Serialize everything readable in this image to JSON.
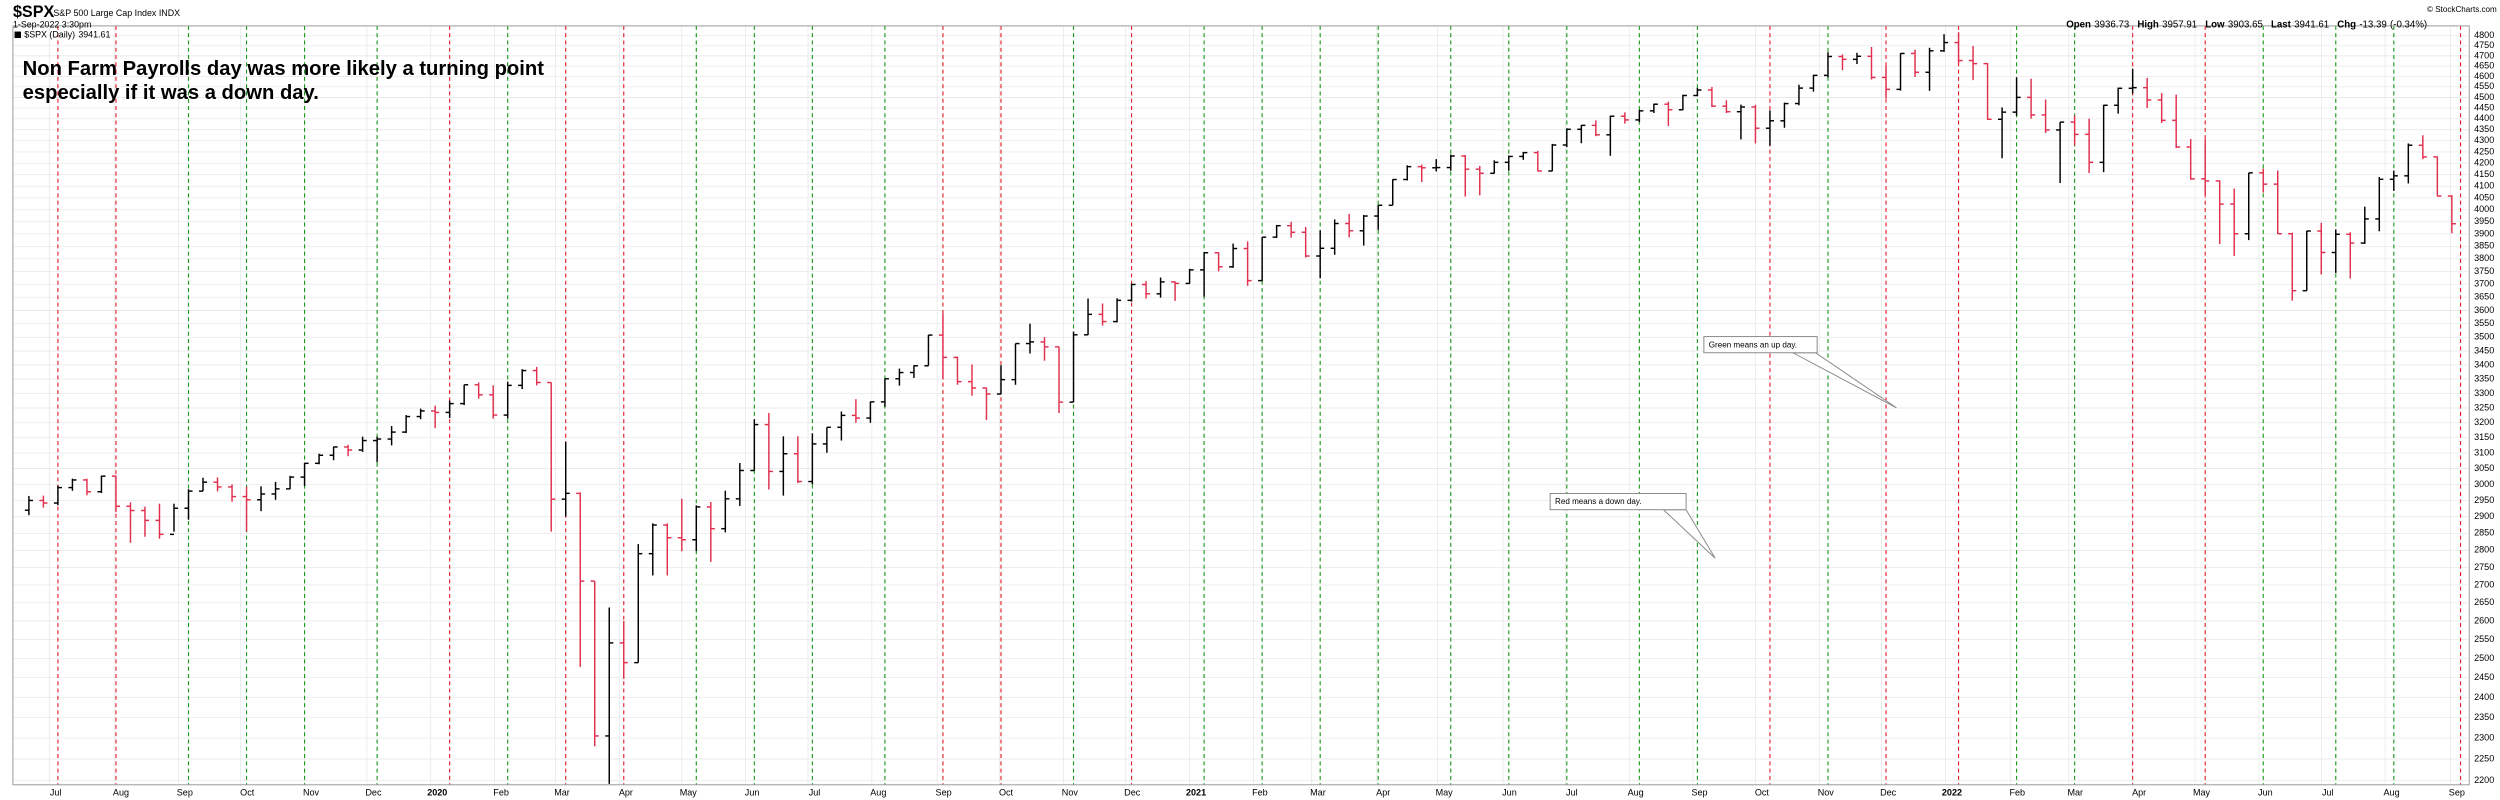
{
  "header": {
    "symbol": "$SPX",
    "name": "S&P 500 Large Cap Index INDX",
    "timestamp": "1-Sep-2022 3:30pm",
    "quote": [
      {
        "label": "Open",
        "value": 3936.73
      },
      {
        "label": "High",
        "value": 3957.91
      },
      {
        "label": "Low",
        "value": 3903.65
      },
      {
        "label": "Last",
        "value": 3941.61
      },
      {
        "label": "Chg",
        "value": -13.39
      }
    ],
    "chg_pct": "(-0.34%)",
    "credit": "© StockCharts.com"
  },
  "chart_data": {
    "type": "ohlc",
    "legend": "$SPX (Daily)",
    "last": 3941.61,
    "annotation": [
      "Non Farm Payrolls day was more likely a turning point",
      "especially if it was a down day."
    ],
    "annotation_color": "#1414d2",
    "callouts": [
      {
        "text": "Green means an up day.",
        "color": "#1a8a1a"
      },
      {
        "text": "Red means a down day.",
        "color": "#e0202a"
      }
    ],
    "up_color": "#000000",
    "down_color": "#e0304e",
    "log_y": true,
    "grid": true,
    "ylim": [
      2190,
      4850
    ],
    "yticks": [
      2200,
      2250,
      2300,
      2350,
      2400,
      2450,
      2500,
      2550,
      2600,
      2650,
      2700,
      2750,
      2800,
      2850,
      2900,
      2950,
      3000,
      3050,
      3100,
      3150,
      3200,
      3250,
      3300,
      3350,
      3400,
      3450,
      3500,
      3550,
      3600,
      3650,
      3700,
      3750,
      3800,
      3850,
      3900,
      3950,
      4000,
      4050,
      4100,
      4150,
      4200,
      4250,
      4300,
      4350,
      4400,
      4450,
      4500,
      4550,
      4600,
      4650,
      4700,
      4750,
      4800
    ],
    "xlim": [
      -1.1,
      168.2
    ],
    "xticks": [
      {
        "value": 1.4,
        "label": "Jul"
      },
      {
        "value": 5.9,
        "label": "Aug"
      },
      {
        "value": 10.3,
        "label": "Sep"
      },
      {
        "value": 14.6,
        "label": "Oct"
      },
      {
        "value": 19,
        "label": "Nov"
      },
      {
        "value": 23.3,
        "label": "Dec"
      },
      {
        "value": 27.7,
        "label": "2020"
      },
      {
        "value": 32.1,
        "label": "Feb"
      },
      {
        "value": 36.3,
        "label": "Mar"
      },
      {
        "value": 40.7,
        "label": "Apr"
      },
      {
        "value": 45,
        "label": "May"
      },
      {
        "value": 49.4,
        "label": "Jun"
      },
      {
        "value": 53.7,
        "label": "Jul"
      },
      {
        "value": 58.1,
        "label": "Aug"
      },
      {
        "value": 62.6,
        "label": "Sep"
      },
      {
        "value": 66.9,
        "label": "Oct"
      },
      {
        "value": 71.3,
        "label": "Nov"
      },
      {
        "value": 75.6,
        "label": "Dec"
      },
      {
        "value": 80,
        "label": "2021"
      },
      {
        "value": 84.4,
        "label": "Feb"
      },
      {
        "value": 88.4,
        "label": "Mar"
      },
      {
        "value": 92.9,
        "label": "Apr"
      },
      {
        "value": 97.1,
        "label": "May"
      },
      {
        "value": 101.6,
        "label": "Jun"
      },
      {
        "value": 105.9,
        "label": "Jul"
      },
      {
        "value": 110.3,
        "label": "Aug"
      },
      {
        "value": 114.7,
        "label": "Sep"
      },
      {
        "value": 119,
        "label": "Oct"
      },
      {
        "value": 123.4,
        "label": "Nov"
      },
      {
        "value": 127.7,
        "label": "Dec"
      },
      {
        "value": 132.1,
        "label": "2022"
      },
      {
        "value": 136.6,
        "label": "Feb"
      },
      {
        "value": 140.6,
        "label": "Mar"
      },
      {
        "value": 145,
        "label": "Apr"
      },
      {
        "value": 149.3,
        "label": "May"
      },
      {
        "value": 153.7,
        "label": "Jun"
      },
      {
        "value": 158,
        "label": "Jul"
      },
      {
        "value": 162.4,
        "label": "Aug"
      },
      {
        "value": 166.9,
        "label": "Sep"
      }
    ],
    "markers": {
      "positions": [
        2,
        6,
        11,
        15,
        19,
        24,
        29,
        33,
        37,
        41,
        46,
        50,
        54,
        59,
        63,
        67,
        72,
        76,
        81,
        85,
        89,
        93,
        98,
        102,
        106,
        111,
        115,
        120,
        124,
        128,
        133,
        137,
        141,
        145,
        150,
        154,
        159,
        163,
        167.6
      ],
      "colors": [
        "#e0202a",
        "#e0202a",
        "#1a9a1a",
        "#1a9a1a",
        "#1a9a1a",
        "#1a9a1a",
        "#e0202a",
        "#1a9a1a",
        "#e0202a",
        "#e0202a",
        "#1a9a1a",
        "#1a9a1a",
        "#1a9a1a",
        "#1a9a1a",
        "#e0202a",
        "#e0202a",
        "#1a9a1a",
        "#e0202a",
        "#1a9a1a",
        "#1a9a1a",
        "#1a9a1a",
        "#1a9a1a",
        "#1a9a1a",
        "#1a9a1a",
        "#1a9a1a",
        "#1a9a1a",
        "#1a9a1a",
        "#e0202a",
        "#1a9a1a",
        "#e0202a",
        "#e0202a",
        "#1a9a1a",
        "#1a9a1a",
        "#e0202a",
        "#e0202a",
        "#1a9a1a",
        "#1a9a1a",
        "#1a9a1a",
        "#e0202a"
      ]
    },
    "series": {
      "open": [
        2920,
        2950,
        2942,
        2990,
        3014,
        2977,
        3026,
        2932,
        2919,
        2889,
        2847,
        2926,
        2979,
        3007,
        2992,
        2962,
        2952,
        2970,
        2986,
        3023,
        3067,
        3093,
        3120,
        3110,
        3141,
        3146,
        3169,
        3221,
        3240,
        3235,
        3265,
        3330,
        3295,
        3226,
        3328,
        3380,
        3338,
        2954,
        2972,
        2711,
        2305,
        2541,
        2489,
        2790,
        2875,
        2837,
        2831,
        2930,
        2864,
        2955,
        3044,
        3194,
        3041,
        3098,
        3009,
        3130,
        3185,
        3225,
        3216,
        3271,
        3351,
        3373,
        3397,
        3508,
        3427,
        3341,
        3319,
        3298,
        3348,
        3477,
        3483,
        3465,
        3270,
        3509,
        3585,
        3558,
        3638,
        3699,
        3663,
        3709,
        3703,
        3756,
        3824,
        3768,
        3841,
        3714,
        3887,
        3934,
        3907,
        3811,
        3842,
        3943,
        3913,
        3974,
        4019,
        4129,
        4185,
        4180,
        4181,
        4232,
        4174,
        4156,
        4204,
        4230,
        4247,
        4166,
        4281,
        4352,
        4370,
        4327,
        4412,
        4395,
        4437,
        4468,
        4442,
        4509,
        4535,
        4459,
        4433,
        4455,
        4357,
        4391,
        4471,
        4544,
        4605,
        4697,
        4683,
        4698,
        4595,
        4538,
        4712,
        4620,
        4725,
        4766,
        4677,
        4662,
        4398,
        4431,
        4500,
        4418,
        4349,
        4385,
        4329,
        4204,
        4463,
        4543,
        4546,
        4488,
        4393,
        4272,
        4132,
        4123,
        4024,
        3901,
        4158,
        4109,
        3901,
        3675,
        3912,
        3825,
        3899,
        3863,
        3962,
        4130,
        4145,
        4280,
        4228,
        4058
      ],
      "high": [
        2964,
        2965,
        2996,
        3018,
        3018,
        3028,
        3028,
        2944,
        2931,
        2940,
        2940,
        2985,
        3021,
        3022,
        3000,
        2993,
        2994,
        3008,
        3027,
        3068,
        3098,
        3121,
        3127,
        3154,
        3154,
        3189,
        3226,
        3248,
        3258,
        3275,
        3330,
        3338,
        3328,
        3341,
        3385,
        3393,
        3338,
        3136,
        2975,
        2711,
        2637,
        2600,
        2818,
        2880,
        2880,
        2955,
        2935,
        2945,
        2980,
        3068,
        3212,
        3233,
        3155,
        3155,
        3165,
        3185,
        3238,
        3280,
        3272,
        3352,
        3387,
        3399,
        3509,
        3588,
        3430,
        3402,
        3320,
        3399,
        3477,
        3550,
        3501,
        3465,
        3521,
        3645,
        3626,
        3646,
        3702,
        3712,
        3726,
        3711,
        3760,
        3826,
        3826,
        3861,
        3870,
        3887,
        3937,
        3950,
        3929,
        3915,
        3960,
        3983,
        3978,
        4020,
        4130,
        4191,
        4194,
        4218,
        4238,
        4236,
        4188,
        4213,
        4234,
        4250,
        4255,
        4286,
        4355,
        4372,
        4393,
        4415,
        4430,
        4442,
        4470,
        4480,
        4513,
        4545,
        4549,
        4486,
        4466,
        4465,
        4439,
        4475,
        4560,
        4608,
        4718,
        4707,
        4715,
        4744,
        4652,
        4713,
        4731,
        4740,
        4808,
        4818,
        4749,
        4665,
        4453,
        4595,
        4589,
        4490,
        4385,
        4416,
        4401,
        4465,
        4546,
        4637,
        4593,
        4520,
        4513,
        4308,
        4307,
        4125,
        4090,
        4158,
        4177,
        4168,
        3905,
        3913,
        3946,
        3919,
        3907,
        4013,
        4140,
        4168,
        4288,
        4325,
        4230,
        4062
      ],
      "low": [
        2905,
        2928,
        2935,
        2980,
        2966,
        2973,
        2914,
        2822,
        2840,
        2834,
        2855,
        2891,
        2979,
        2978,
        2946,
        2855,
        2917,
        2952,
        2985,
        2995,
        3064,
        3077,
        3090,
        3104,
        3070,
        3125,
        3166,
        3212,
        3182,
        3216,
        3260,
        3282,
        3214,
        3214,
        3315,
        3328,
        2855,
        2901,
        2478,
        2280,
        2192,
        2447,
        2489,
        2727,
        2727,
        2797,
        2798,
        2766,
        2853,
        2933,
        3044,
        2984,
        2965,
        3004,
        3000,
        3101,
        3141,
        3200,
        3200,
        3254,
        3327,
        3354,
        3397,
        3350,
        3330,
        3292,
        3209,
        3297,
        3330,
        3441,
        3415,
        3233,
        3270,
        3508,
        3543,
        3555,
        3633,
        3645,
        3648,
        3636,
        3702,
        3652,
        3750,
        3764,
        3694,
        3712,
        3884,
        3885,
        3805,
        3723,
        3816,
        3886,
        3853,
        3917,
        4019,
        4125,
        4118,
        4164,
        4167,
        4056,
        4061,
        4155,
        4167,
        4215,
        4165,
        4165,
        4271,
        4289,
        4321,
        4233,
        4378,
        4385,
        4427,
        4367,
        4440,
        4505,
        4455,
        4427,
        4306,
        4288,
        4278,
        4359,
        4463,
        4527,
        4595,
        4630,
        4660,
        4585,
        4495,
        4532,
        4597,
        4531,
        4720,
        4663,
        4582,
        4395,
        4222,
        4414,
        4401,
        4335,
        4114,
        4279,
        4157,
        4161,
        4424,
        4518,
        4450,
        4381,
        4267,
        4128,
        4062,
        3859,
        3811,
        3875,
        4073,
        3900,
        3637,
        3675,
        3738,
        3744,
        3722,
        3860,
        3911,
        4080,
        4112,
        4218,
        4057,
        3903
      ],
      "close": [
        2950,
        2942,
        2990,
        3014,
        2977,
        3026,
        2932,
        2919,
        2889,
        2847,
        2926,
        2979,
        3007,
        2992,
        2962,
        2952,
        2970,
        2986,
        3023,
        3067,
        3093,
        3120,
        3110,
        3141,
        3146,
        3169,
        3221,
        3240,
        3235,
        3265,
        3330,
        3295,
        3226,
        3328,
        3380,
        3338,
        2954,
        2972,
        2711,
        2305,
        2541,
        2489,
        2790,
        2875,
        2837,
        2831,
        2930,
        2864,
        2955,
        3044,
        3194,
        3041,
        3098,
        3009,
        3130,
        3185,
        3225,
        3216,
        3271,
        3351,
        3373,
        3397,
        3508,
        3427,
        3341,
        3319,
        3298,
        3348,
        3477,
        3483,
        3465,
        3270,
        3509,
        3585,
        3558,
        3638,
        3699,
        3663,
        3709,
        3703,
        3756,
        3824,
        3768,
        3841,
        3714,
        3887,
        3934,
        3907,
        3811,
        3842,
        3943,
        3913,
        3974,
        4019,
        4129,
        4185,
        4180,
        4181,
        4232,
        4174,
        4156,
        4204,
        4230,
        4247,
        4166,
        4281,
        4352,
        4370,
        4327,
        4412,
        4395,
        4437,
        4468,
        4442,
        4509,
        4535,
        4459,
        4433,
        4455,
        4357,
        4391,
        4471,
        4544,
        4605,
        4697,
        4683,
        4698,
        4595,
        4538,
        4712,
        4620,
        4725,
        4766,
        4677,
        4662,
        4398,
        4431,
        4500,
        4418,
        4349,
        4385,
        4329,
        4204,
        4463,
        4543,
        4546,
        4488,
        4393,
        4272,
        4132,
        4123,
        4024,
        3901,
        4158,
        4109,
        3901,
        3675,
        3912,
        3825,
        3899,
        3863,
        3962,
        4130,
        4145,
        4280,
        4228,
        4058,
        3942
      ]
    }
  }
}
